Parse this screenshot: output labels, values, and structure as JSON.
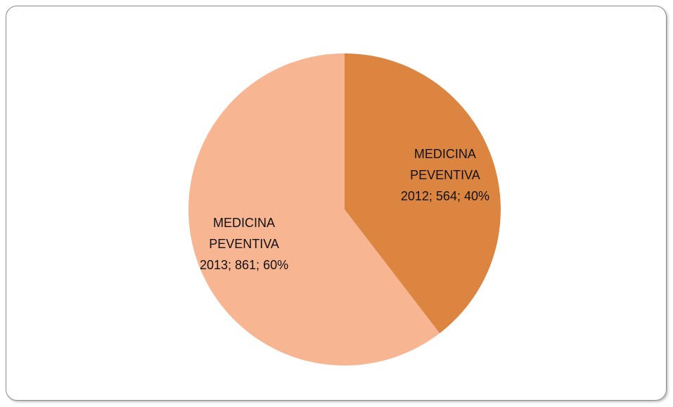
{
  "chart_data": {
    "type": "pie",
    "series_name": "MEDICINA PEVENTIVA",
    "categories": [
      "2012",
      "2013"
    ],
    "values": [
      564,
      861
    ],
    "value_labels": [
      "2012; 564; 40%",
      "2013; 861; 60%"
    ],
    "colors": [
      "#dc8540",
      "#f8b592"
    ],
    "start_angle": 0,
    "direction": "clockwise"
  }
}
